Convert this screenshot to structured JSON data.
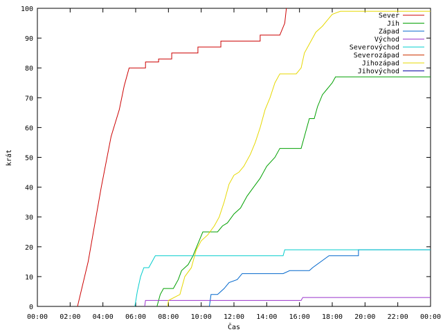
{
  "chart_data": {
    "type": "line",
    "xlabel": "Čas",
    "ylabel": "krát",
    "xlim": [
      0,
      24
    ],
    "ylim": [
      0,
      100
    ],
    "grid": false,
    "legend_placement": "top-right",
    "x_ticks": [
      {
        "value": 0,
        "label": "00:00"
      },
      {
        "value": 2,
        "label": "02:00"
      },
      {
        "value": 4,
        "label": "04:00"
      },
      {
        "value": 6,
        "label": "06:00"
      },
      {
        "value": 8,
        "label": "08:00"
      },
      {
        "value": 10,
        "label": "10:00"
      },
      {
        "value": 12,
        "label": "12:00"
      },
      {
        "value": 14,
        "label": "14:00"
      },
      {
        "value": 16,
        "label": "16:00"
      },
      {
        "value": 18,
        "label": "18:00"
      },
      {
        "value": 20,
        "label": "20:00"
      },
      {
        "value": 22,
        "label": "22:00"
      },
      {
        "value": 24,
        "label": "00:00"
      }
    ],
    "y_ticks": [
      {
        "value": 0,
        "label": "0"
      },
      {
        "value": 10,
        "label": "10"
      },
      {
        "value": 20,
        "label": "20"
      },
      {
        "value": 30,
        "label": "30"
      },
      {
        "value": 40,
        "label": "40"
      },
      {
        "value": 50,
        "label": "50"
      },
      {
        "value": 60,
        "label": "60"
      },
      {
        "value": 70,
        "label": "70"
      },
      {
        "value": 80,
        "label": "80"
      },
      {
        "value": 90,
        "label": "90"
      },
      {
        "value": 100,
        "label": "100"
      }
    ],
    "series": [
      {
        "name": "Sever",
        "color": "#cc0000",
        "points": [
          [
            2.45,
            0
          ],
          [
            3.1,
            15
          ],
          [
            3.9,
            40
          ],
          [
            4.5,
            57
          ],
          [
            5.0,
            66
          ],
          [
            5.3,
            74
          ],
          [
            5.6,
            80
          ],
          [
            6.6,
            80
          ],
          [
            6.6,
            82
          ],
          [
            7.4,
            82
          ],
          [
            7.4,
            83
          ],
          [
            8.2,
            83
          ],
          [
            8.2,
            85
          ],
          [
            9.8,
            85
          ],
          [
            9.8,
            87
          ],
          [
            11.2,
            87
          ],
          [
            11.2,
            89
          ],
          [
            13.6,
            89
          ],
          [
            13.6,
            91
          ],
          [
            14.8,
            91
          ],
          [
            15.1,
            95
          ],
          [
            15.2,
            100
          ]
        ]
      },
      {
        "name": "Jih",
        "color": "#00a000",
        "points": [
          [
            7.3,
            0
          ],
          [
            7.5,
            4
          ],
          [
            7.7,
            6
          ],
          [
            8.3,
            6
          ],
          [
            8.6,
            9
          ],
          [
            8.8,
            12
          ],
          [
            9.2,
            14
          ],
          [
            9.5,
            17
          ],
          [
            9.8,
            21
          ],
          [
            10.1,
            25
          ],
          [
            10.6,
            25
          ],
          [
            11.0,
            25
          ],
          [
            11.3,
            27
          ],
          [
            11.6,
            28
          ],
          [
            12.0,
            31
          ],
          [
            12.4,
            33
          ],
          [
            12.8,
            37
          ],
          [
            13.2,
            40
          ],
          [
            13.6,
            43
          ],
          [
            14.0,
            47
          ],
          [
            14.5,
            50
          ],
          [
            14.8,
            53
          ],
          [
            16.1,
            53
          ],
          [
            16.3,
            57
          ],
          [
            16.6,
            63
          ],
          [
            16.9,
            63
          ],
          [
            17.1,
            67
          ],
          [
            17.4,
            71
          ],
          [
            17.7,
            73
          ],
          [
            18.0,
            75
          ],
          [
            18.2,
            77
          ],
          [
            24.0,
            77
          ]
        ]
      },
      {
        "name": "Západ",
        "color": "#0066cc",
        "points": [
          [
            10.5,
            0
          ],
          [
            10.6,
            4
          ],
          [
            11.0,
            4
          ],
          [
            11.4,
            6
          ],
          [
            11.7,
            8
          ],
          [
            12.2,
            9
          ],
          [
            12.5,
            11
          ],
          [
            15.0,
            11
          ],
          [
            15.4,
            12
          ],
          [
            16.6,
            12
          ],
          [
            16.8,
            13
          ],
          [
            17.3,
            15
          ],
          [
            17.8,
            17
          ],
          [
            19.6,
            17
          ],
          [
            19.6,
            19
          ],
          [
            24.0,
            19
          ]
        ]
      },
      {
        "name": "Východ",
        "color": "#9933cc",
        "points": [
          [
            6.55,
            0
          ],
          [
            6.6,
            2
          ],
          [
            16.1,
            2
          ],
          [
            16.2,
            3
          ],
          [
            24.0,
            3
          ]
        ]
      },
      {
        "name": "Severovýchod",
        "color": "#00cccc",
        "points": [
          [
            5.95,
            0
          ],
          [
            6.1,
            5
          ],
          [
            6.3,
            10
          ],
          [
            6.5,
            13
          ],
          [
            6.8,
            13
          ],
          [
            7.0,
            15
          ],
          [
            7.2,
            17
          ],
          [
            15.0,
            17
          ],
          [
            15.1,
            19
          ],
          [
            24.0,
            19
          ]
        ]
      },
      {
        "name": "Severozápad",
        "color": "#cc3300",
        "points": []
      },
      {
        "name": "Jihozápad",
        "color": "#e6d800",
        "points": [
          [
            7.95,
            0
          ],
          [
            8.0,
            2
          ],
          [
            8.7,
            4
          ],
          [
            9.0,
            10
          ],
          [
            9.4,
            13
          ],
          [
            9.7,
            19
          ],
          [
            10.0,
            22
          ],
          [
            10.4,
            24
          ],
          [
            10.8,
            27
          ],
          [
            11.1,
            30
          ],
          [
            11.4,
            35
          ],
          [
            11.7,
            41
          ],
          [
            12.0,
            44
          ],
          [
            12.3,
            45
          ],
          [
            12.6,
            47
          ],
          [
            13.0,
            51
          ],
          [
            13.3,
            55
          ],
          [
            13.6,
            60
          ],
          [
            13.9,
            66
          ],
          [
            14.2,
            70
          ],
          [
            14.5,
            75
          ],
          [
            14.8,
            78
          ],
          [
            15.8,
            78
          ],
          [
            16.1,
            80
          ],
          [
            16.3,
            85
          ],
          [
            16.6,
            88
          ],
          [
            17.0,
            92
          ],
          [
            17.4,
            94
          ],
          [
            17.7,
            96
          ],
          [
            18.0,
            98
          ],
          [
            18.5,
            99
          ],
          [
            24.0,
            99
          ]
        ]
      },
      {
        "name": "Jihovýchod",
        "color": "#0000a0",
        "points": []
      }
    ]
  }
}
